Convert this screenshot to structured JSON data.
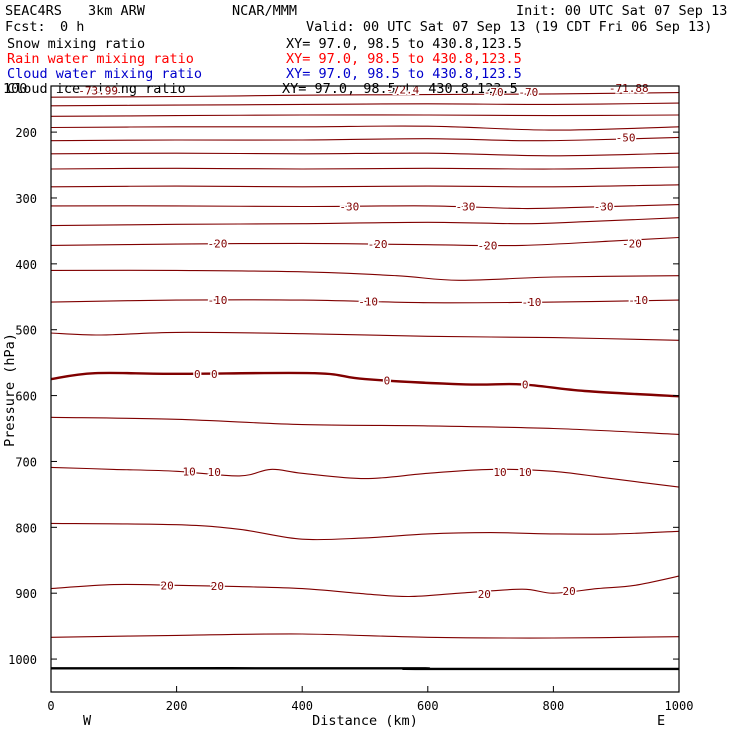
{
  "header": {
    "model": "SEAC4RS",
    "resolution": "3km ARW",
    "org": "NCAR/MMM",
    "init": "Init: 00 UTC Sat 07 Sep 13",
    "fcst": "Fcst:",
    "fcst_value": "0 h",
    "valid": "Valid: 00 UTC Sat 07 Sep 13 (19 CDT Fri 06 Sep 13)"
  },
  "legend": [
    {
      "name": "Snow mixing ratio",
      "xy": "XY=  97.0, 98.5 to 430.8,123.5",
      "color": "#000000"
    },
    {
      "name": "Rain water mixing ratio",
      "xy": "XY=  97.0, 98.5 to 430.8,123.5",
      "color": "#ff0000"
    },
    {
      "name": "Cloud water mixing ratio",
      "xy": "XY=  97.0, 98.5 to 430.8,123.5",
      "color": "#0000cc"
    },
    {
      "name": "Cloud ice mixing ratio",
      "xy": "XY=  97.0, 98.5 to 430.8,123.5",
      "color": "#000000"
    }
  ],
  "colors": {
    "contour": "#800000",
    "zero_line": "#800000",
    "surface": "#000000",
    "frame": "#000000"
  },
  "chart_data": {
    "type": "line",
    "subtype": "vertical cross-section, temperature contours (deg C)",
    "xlabel": "Distance (km)",
    "ylabel": "Pressure (hPa)",
    "xlim": [
      0,
      1000
    ],
    "ylim": [
      1050,
      130
    ],
    "xticks": [
      0,
      200,
      400,
      600,
      800,
      1000
    ],
    "yticks": [
      200,
      300,
      400,
      500,
      600,
      700,
      800,
      900,
      1000
    ],
    "ytick_labels": [
      "200",
      "300",
      "400",
      "500",
      "600",
      "700",
      "800",
      "900",
      "1000"
    ],
    "ytick_top_label": "100",
    "direction_labels": {
      "left": "W",
      "right": "E"
    },
    "contour_interval": 5,
    "contours": [
      {
        "level": 15,
        "x": [
          0,
          200,
          400,
          600,
          800,
          1000
        ],
        "y": [
          967,
          964,
          962,
          967,
          968,
          966
        ]
      },
      {
        "level": 20,
        "x": [
          0,
          100,
          200,
          300,
          400,
          500,
          570,
          650,
          750,
          800,
          870,
          930,
          1000
        ],
        "y": [
          893,
          887,
          888,
          890,
          893,
          901,
          905,
          900,
          894,
          900,
          893,
          888,
          874
        ]
      },
      {
        "level": 15,
        "x": [
          0,
          200,
          300,
          400,
          500,
          600,
          700,
          800,
          900,
          1000
        ],
        "y": [
          794,
          796,
          803,
          818,
          816,
          810,
          808,
          810,
          810,
          806
        ]
      },
      {
        "level": 10,
        "x": [
          0,
          100,
          200,
          300,
          350,
          400,
          500,
          600,
          700,
          800,
          900,
          1000
        ],
        "y": [
          709,
          712,
          715,
          722,
          712,
          718,
          726,
          718,
          712,
          715,
          727,
          739
        ]
      },
      {
        "level": 5,
        "x": [
          0,
          200,
          400,
          600,
          800,
          1000
        ],
        "y": [
          633,
          636,
          644,
          646,
          650,
          659
        ]
      },
      {
        "level": 0,
        "bold": true,
        "x": [
          0,
          70,
          200,
          420,
          500,
          660,
          750,
          850,
          1000
        ],
        "y": [
          575,
          566,
          567,
          566,
          575,
          583,
          583,
          593,
          601
        ]
      },
      {
        "level": -5,
        "x": [
          0,
          80,
          200,
          400,
          600,
          800,
          1000
        ],
        "y": [
          505,
          508,
          504,
          506,
          510,
          512,
          516
        ]
      },
      {
        "level": -10,
        "x": [
          0,
          200,
          400,
          600,
          800,
          1000
        ],
        "y": [
          458,
          455,
          455,
          459,
          458,
          455
        ]
      },
      {
        "level": -15,
        "x": [
          0,
          200,
          400,
          550,
          650,
          800,
          1000
        ],
        "y": [
          410,
          410,
          412,
          418,
          425,
          420,
          418
        ]
      },
      {
        "level": -20,
        "x": [
          0,
          200,
          400,
          600,
          750,
          900,
          1000
        ],
        "y": [
          372,
          370,
          369,
          371,
          372,
          365,
          360
        ]
      },
      {
        "level": -25,
        "x": [
          0,
          200,
          400,
          600,
          750,
          850,
          1000
        ],
        "y": [
          342,
          340,
          339,
          337,
          339,
          336,
          330
        ]
      },
      {
        "level": -30,
        "x": [
          0,
          200,
          400,
          600,
          750,
          850,
          1000
        ],
        "y": [
          312,
          312,
          313,
          312,
          316,
          314,
          310
        ]
      },
      {
        "level": -35,
        "x": [
          0,
          200,
          400,
          600,
          800,
          1000
        ],
        "y": [
          283,
          282,
          283,
          282,
          283,
          280
        ]
      },
      {
        "level": -40,
        "x": [
          0,
          200,
          400,
          600,
          800,
          1000
        ],
        "y": [
          256,
          255,
          256,
          255,
          256,
          253
        ]
      },
      {
        "level": -45,
        "x": [
          0,
          200,
          400,
          600,
          800,
          1000
        ],
        "y": [
          233,
          232,
          233,
          232,
          236,
          232
        ]
      },
      {
        "level": -50,
        "x": [
          0,
          200,
          400,
          600,
          750,
          850,
          1000
        ],
        "y": [
          213,
          212,
          212,
          210,
          213,
          212,
          208
        ]
      },
      {
        "level": -55,
        "x": [
          0,
          200,
          400,
          600,
          800,
          1000
        ],
        "y": [
          193,
          192,
          192,
          191,
          197,
          192
        ]
      },
      {
        "level": -60,
        "x": [
          0,
          200,
          400,
          600,
          800,
          1000
        ],
        "y": [
          176,
          175,
          174,
          174,
          175,
          174
        ]
      },
      {
        "level": -65,
        "x": [
          0,
          200,
          400,
          600,
          800,
          1000
        ],
        "y": [
          160,
          159,
          158,
          157,
          158,
          156
        ]
      },
      {
        "level": -70,
        "x": [
          0,
          200,
          400,
          600,
          800,
          1000
        ],
        "y": [
          147,
          146,
          144,
          143,
          142,
          140
        ]
      }
    ],
    "surface_line": {
      "x": [
        0,
        570,
        580,
        1000
      ],
      "y": [
        1014,
        1014,
        1015,
        1015
      ]
    },
    "labels": [
      {
        "text": "-73.99",
        "x": 75,
        "y": 137
      },
      {
        "text": "-72.4",
        "x": 560,
        "y": 135
      },
      {
        "text": "-71.88",
        "x": 920,
        "y": 133
      },
      {
        "text": "-70",
        "x": 705,
        "y": 139
      },
      {
        "text": "-70",
        "x": 760,
        "y": 139
      },
      {
        "text": "-50",
        "x": 915,
        "y": 208
      },
      {
        "text": "-30",
        "x": 475,
        "y": 313
      },
      {
        "text": "-30",
        "x": 660,
        "y": 313
      },
      {
        "text": "-30",
        "x": 880,
        "y": 313
      },
      {
        "text": "-20",
        "x": 265,
        "y": 369
      },
      {
        "text": "-20",
        "x": 520,
        "y": 370
      },
      {
        "text": "-20",
        "x": 695,
        "y": 372
      },
      {
        "text": "-20",
        "x": 925,
        "y": 369
      },
      {
        "text": "-10",
        "x": 265,
        "y": 455
      },
      {
        "text": "-10",
        "x": 505,
        "y": 457
      },
      {
        "text": "-10",
        "x": 765,
        "y": 458
      },
      {
        "text": "-10",
        "x": 935,
        "y": 455
      },
      {
        "text": "0",
        "x": 233,
        "y": 567
      },
      {
        "text": "0",
        "x": 260,
        "y": 567
      },
      {
        "text": "0",
        "x": 535,
        "y": 577
      },
      {
        "text": "0",
        "x": 755,
        "y": 583
      },
      {
        "text": "10",
        "x": 220,
        "y": 715
      },
      {
        "text": "10",
        "x": 260,
        "y": 716
      },
      {
        "text": "10",
        "x": 715,
        "y": 716
      },
      {
        "text": "10",
        "x": 755,
        "y": 716
      },
      {
        "text": "20",
        "x": 185,
        "y": 888
      },
      {
        "text": "20",
        "x": 265,
        "y": 889
      },
      {
        "text": "20",
        "x": 690,
        "y": 901
      },
      {
        "text": "20",
        "x": 825,
        "y": 897
      }
    ]
  }
}
